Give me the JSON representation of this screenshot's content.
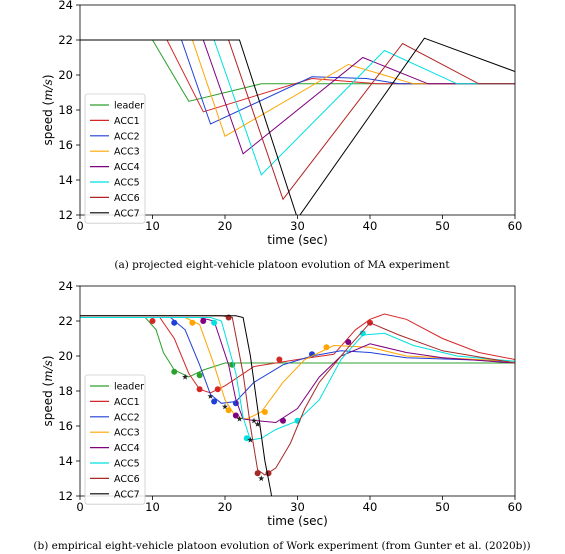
{
  "chart_data": [
    {
      "type": "line",
      "caption": "(a) projected eight-vehicle platoon evolution of MA experiment",
      "xlabel": "time (sec)",
      "ylabel": "speed",
      "ylabel_unit": "m/s",
      "xlim": [
        0,
        60
      ],
      "ylim": [
        12,
        24
      ],
      "xticks": [
        0,
        10,
        20,
        30,
        40,
        50,
        60
      ],
      "yticks": [
        12,
        14,
        16,
        18,
        20,
        22,
        24
      ],
      "grid": false,
      "legend_position": "lower-left",
      "series": [
        {
          "name": "leader",
          "color": "#2ca02c",
          "points": [
            [
              0,
              22
            ],
            [
              10,
              22
            ],
            [
              15,
              18.5
            ],
            [
              25,
              19.5
            ],
            [
              60,
              19.5
            ]
          ]
        },
        {
          "name": "ACC1",
          "color": "#d62728",
          "points": [
            [
              0,
              22
            ],
            [
              12,
              22
            ],
            [
              17,
              17.9
            ],
            [
              32,
              19.8
            ],
            [
              41,
              19.5
            ],
            [
              60,
              19.5
            ]
          ]
        },
        {
          "name": "ACC2",
          "color": "#1f3fd6",
          "points": [
            [
              0,
              22
            ],
            [
              14,
              22
            ],
            [
              18,
              17.2
            ],
            [
              32,
              19.9
            ],
            [
              39.5,
              19.8
            ],
            [
              44,
              19.5
            ],
            [
              60,
              19.5
            ]
          ]
        },
        {
          "name": "ACC3",
          "color": "#ffa500",
          "points": [
            [
              0,
              22
            ],
            [
              15.5,
              22
            ],
            [
              20,
              16.5
            ],
            [
              37,
              20.6
            ],
            [
              46,
              19.5
            ],
            [
              60,
              19.5
            ]
          ]
        },
        {
          "name": "ACC4",
          "color": "#800080",
          "points": [
            [
              0,
              22
            ],
            [
              17,
              22
            ],
            [
              22.5,
              15.5
            ],
            [
              39,
              21
            ],
            [
              48,
              19.5
            ],
            [
              60,
              19.5
            ]
          ]
        },
        {
          "name": "ACC5",
          "color": "#00e0e0",
          "points": [
            [
              0,
              22
            ],
            [
              18.5,
              22
            ],
            [
              25,
              14.3
            ],
            [
              42,
              21.4
            ],
            [
              52,
              19.5
            ],
            [
              60,
              19.5
            ]
          ]
        },
        {
          "name": "ACC6",
          "color": "#b22222",
          "points": [
            [
              0,
              22
            ],
            [
              20.5,
              22
            ],
            [
              28,
              12.9
            ],
            [
              44.5,
              21.8
            ],
            [
              55,
              19.5
            ],
            [
              60,
              19.5
            ]
          ]
        },
        {
          "name": "ACC7",
          "color": "#000000",
          "points": [
            [
              0,
              22
            ],
            [
              22,
              22
            ],
            [
              30,
              11.8
            ],
            [
              47.5,
              22.1
            ],
            [
              60,
              20.2
            ]
          ]
        }
      ]
    },
    {
      "type": "line",
      "caption": "(b) empirical eight-vehicle platoon evolution of Work experiment (from Gunter et al. (2020b))",
      "xlabel": "time (sec)",
      "ylabel": "speed",
      "ylabel_unit": "m/s",
      "xlim": [
        0,
        60
      ],
      "ylim": [
        12,
        24
      ],
      "xticks": [
        0,
        10,
        20,
        30,
        40,
        50,
        60
      ],
      "yticks": [
        12,
        14,
        16,
        18,
        20,
        22,
        24
      ],
      "grid": false,
      "legend_position": "lower-left",
      "series": [
        {
          "name": "leader",
          "color": "#2ca02c",
          "points": [
            [
              0,
              22.2
            ],
            [
              9,
              22.2
            ],
            [
              10.5,
              21.5
            ],
            [
              11.5,
              20.2
            ],
            [
              13,
              19.2
            ],
            [
              15,
              18.8
            ],
            [
              17,
              19.2
            ],
            [
              20,
              19.6
            ],
            [
              30,
              19.6
            ],
            [
              60,
              19.6
            ]
          ],
          "dots": [
            [
              13,
              19.1
            ],
            [
              16.5,
              18.9
            ],
            [
              21,
              19.5
            ]
          ],
          "stars": [
            [
              14.5,
              18.8
            ]
          ]
        },
        {
          "name": "ACC1",
          "color": "#d62728",
          "points": [
            [
              0,
              22.2
            ],
            [
              11,
              22.2
            ],
            [
              13,
              21
            ],
            [
              15,
              19
            ],
            [
              16.5,
              18.1
            ],
            [
              18,
              17.9
            ],
            [
              20,
              18.3
            ],
            [
              24,
              19.4
            ],
            [
              30,
              19.8
            ],
            [
              35,
              20.1
            ],
            [
              38,
              21.5
            ],
            [
              40,
              22.1
            ],
            [
              42,
              22.4
            ],
            [
              45,
              22.1
            ],
            [
              50,
              21
            ],
            [
              55,
              20.2
            ],
            [
              60,
              19.8
            ]
          ],
          "dots": [
            [
              10,
              22
            ],
            [
              16.5,
              18.1
            ],
            [
              19,
              18.1
            ],
            [
              27.5,
              19.8
            ],
            [
              40,
              21.9
            ]
          ],
          "stars": [
            [
              18,
              17.7
            ]
          ]
        },
        {
          "name": "ACC2",
          "color": "#1f3fd6",
          "points": [
            [
              0,
              22.2
            ],
            [
              12.5,
              22.2
            ],
            [
              14.5,
              21.5
            ],
            [
              16.5,
              19.5
            ],
            [
              18,
              17.8
            ],
            [
              19.5,
              17.3
            ],
            [
              21.5,
              17.4
            ],
            [
              24,
              18.5
            ],
            [
              28,
              19.5
            ],
            [
              32,
              20
            ],
            [
              36,
              20.3
            ],
            [
              40,
              20.2
            ],
            [
              45,
              19.9
            ],
            [
              60,
              19.7
            ]
          ],
          "dots": [
            [
              13,
              21.9
            ],
            [
              18.5,
              17.4
            ],
            [
              21.5,
              17.3
            ],
            [
              32,
              20.1
            ]
          ],
          "stars": [
            [
              20,
              17.1
            ]
          ]
        },
        {
          "name": "ACC3",
          "color": "#ffa500",
          "points": [
            [
              0,
              22.2
            ],
            [
              14.5,
              22.2
            ],
            [
              16.5,
              21.8
            ],
            [
              18.5,
              19.5
            ],
            [
              20,
              17.5
            ],
            [
              21.5,
              16.5
            ],
            [
              23,
              16.4
            ],
            [
              25,
              16.8
            ],
            [
              28,
              18.5
            ],
            [
              31,
              19.8
            ],
            [
              35,
              20.6
            ],
            [
              40,
              20.5
            ],
            [
              45,
              20
            ],
            [
              60,
              19.7
            ]
          ],
          "dots": [
            [
              15.5,
              21.9
            ],
            [
              20.5,
              16.9
            ],
            [
              25.5,
              16.8
            ],
            [
              34,
              20.5
            ]
          ],
          "stars": [
            [
              22,
              16.4
            ]
          ]
        },
        {
          "name": "ACC4",
          "color": "#800080",
          "points": [
            [
              0,
              22.2
            ],
            [
              16.5,
              22.2
            ],
            [
              18.5,
              22
            ],
            [
              20.5,
              19.5
            ],
            [
              21.5,
              17.5
            ],
            [
              22.5,
              16.4
            ],
            [
              24.5,
              16.3
            ],
            [
              27,
              16.2
            ],
            [
              30,
              17
            ],
            [
              33,
              18.8
            ],
            [
              36,
              20
            ],
            [
              40,
              20.7
            ],
            [
              45,
              20.2
            ],
            [
              50,
              19.9
            ],
            [
              60,
              19.6
            ]
          ],
          "dots": [
            [
              17,
              22
            ],
            [
              21.5,
              16.6
            ],
            [
              28,
              16.3
            ],
            [
              37,
              20.8
            ]
          ],
          "stars": [
            [
              24,
              16.3
            ]
          ]
        },
        {
          "name": "ACC5",
          "color": "#00e0e0",
          "points": [
            [
              0,
              22.2
            ],
            [
              18,
              22.2
            ],
            [
              19.5,
              22
            ],
            [
              21.5,
              19
            ],
            [
              22.5,
              16.5
            ],
            [
              23.5,
              15.2
            ],
            [
              25,
              15.3
            ],
            [
              27,
              15.8
            ],
            [
              30,
              16.3
            ],
            [
              33,
              17.5
            ],
            [
              36,
              19.8
            ],
            [
              39,
              21.2
            ],
            [
              42,
              21.3
            ],
            [
              46,
              20.6
            ],
            [
              52,
              20
            ],
            [
              60,
              19.7
            ]
          ],
          "dots": [
            [
              18.5,
              21.9
            ],
            [
              23,
              15.3
            ],
            [
              30,
              16.3
            ],
            [
              39,
              21.3
            ]
          ],
          "stars": [
            [
              23.5,
              15.2
            ]
          ]
        },
        {
          "name": "ACC6",
          "color": "#a52a2a",
          "points": [
            [
              0,
              22.3
            ],
            [
              19.5,
              22.3
            ],
            [
              21,
              22.2
            ],
            [
              22.5,
              19
            ],
            [
              23.5,
              16
            ],
            [
              24.5,
              13.5
            ],
            [
              25.5,
              13.2
            ],
            [
              27,
              13.6
            ],
            [
              29,
              15
            ],
            [
              31,
              17
            ],
            [
              33,
              18.5
            ],
            [
              35,
              19.5
            ],
            [
              37,
              20.5
            ],
            [
              40,
              21.9
            ],
            [
              44,
              21.2
            ],
            [
              50,
              20.3
            ],
            [
              60,
              19.6
            ]
          ],
          "dots": [
            [
              20.5,
              22.2
            ],
            [
              24.5,
              13.3
            ],
            [
              26,
              13.3
            ]
          ],
          "stars": [
            [
              25,
              13
            ]
          ]
        },
        {
          "name": "ACC7",
          "color": "#000000",
          "points": [
            [
              0,
              22.3
            ],
            [
              21.5,
              22.3
            ],
            [
              22.5,
              22.2
            ],
            [
              23.5,
              20
            ],
            [
              24.5,
              17
            ],
            [
              25.5,
              14
            ],
            [
              26.3,
              12.3
            ],
            [
              26.5,
              11.8
            ]
          ],
          "dots": [],
          "stars": [
            [
              24.5,
              16.1
            ]
          ]
        }
      ]
    }
  ]
}
